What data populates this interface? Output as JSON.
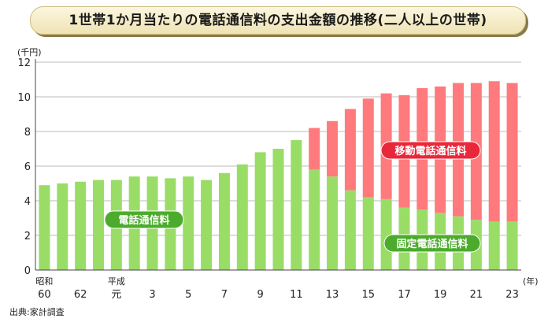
{
  "title": "1世帯1か月当たりの電話通信料の支出金額の推移(二人以上の世帯)",
  "source": "出典:家計調査",
  "colors": {
    "fixed": "#99dd66",
    "mobile": "#ff7a7d",
    "mobile_label_bg": "#e8283a",
    "fixed_label_bg": "#4cab2d",
    "grid": "#bbbbbb"
  },
  "chart_data": {
    "type": "bar",
    "stacked": true,
    "ylabel": "(千円)",
    "xlabel": "(年)",
    "ylim": [
      0,
      12
    ],
    "yticks": [
      0,
      2,
      4,
      6,
      8,
      10,
      12
    ],
    "categories": [
      "昭和60",
      "61",
      "62",
      "63",
      "平成元",
      "2",
      "3",
      "4",
      "5",
      "6",
      "7",
      "8",
      "9",
      "10",
      "11",
      "12",
      "13",
      "14",
      "15",
      "16",
      "17",
      "18",
      "19",
      "20",
      "21",
      "22",
      "23"
    ],
    "category_labels": [
      [
        "昭和",
        "60"
      ],
      [
        "",
        ""
      ],
      [
        "",
        "62"
      ],
      [
        "",
        ""
      ],
      [
        "平成",
        "元"
      ],
      [
        "",
        ""
      ],
      [
        "",
        "3"
      ],
      [
        "",
        ""
      ],
      [
        "",
        "5"
      ],
      [
        "",
        ""
      ],
      [
        "",
        "7"
      ],
      [
        "",
        ""
      ],
      [
        "",
        "9"
      ],
      [
        "",
        ""
      ],
      [
        "",
        "11"
      ],
      [
        "",
        ""
      ],
      [
        "",
        "13"
      ],
      [
        "",
        ""
      ],
      [
        "",
        "15"
      ],
      [
        "",
        ""
      ],
      [
        "",
        "17"
      ],
      [
        "",
        ""
      ],
      [
        "",
        "19"
      ],
      [
        "",
        ""
      ],
      [
        "",
        "21"
      ],
      [
        "",
        ""
      ],
      [
        "",
        "23"
      ]
    ],
    "series": [
      {
        "name": "固定電話通信料",
        "values": [
          4.9,
          5.0,
          5.1,
          5.2,
          5.2,
          5.4,
          5.4,
          5.3,
          5.4,
          5.2,
          5.6,
          6.1,
          6.8,
          7.0,
          7.5,
          5.8,
          5.4,
          4.6,
          4.2,
          4.1,
          3.6,
          3.5,
          3.3,
          3.1,
          2.9,
          2.8,
          2.8
        ]
      },
      {
        "name": "移動電話通信料",
        "values": [
          0,
          0,
          0,
          0,
          0,
          0,
          0,
          0,
          0,
          0,
          0,
          0,
          0,
          0,
          0,
          2.4,
          3.2,
          4.7,
          5.7,
          6.1,
          6.5,
          7.0,
          7.3,
          7.7,
          7.9,
          8.1,
          8.0
        ]
      }
    ],
    "labels": {
      "fixed_total_label": "電話通信料"
    },
    "grid": true
  }
}
